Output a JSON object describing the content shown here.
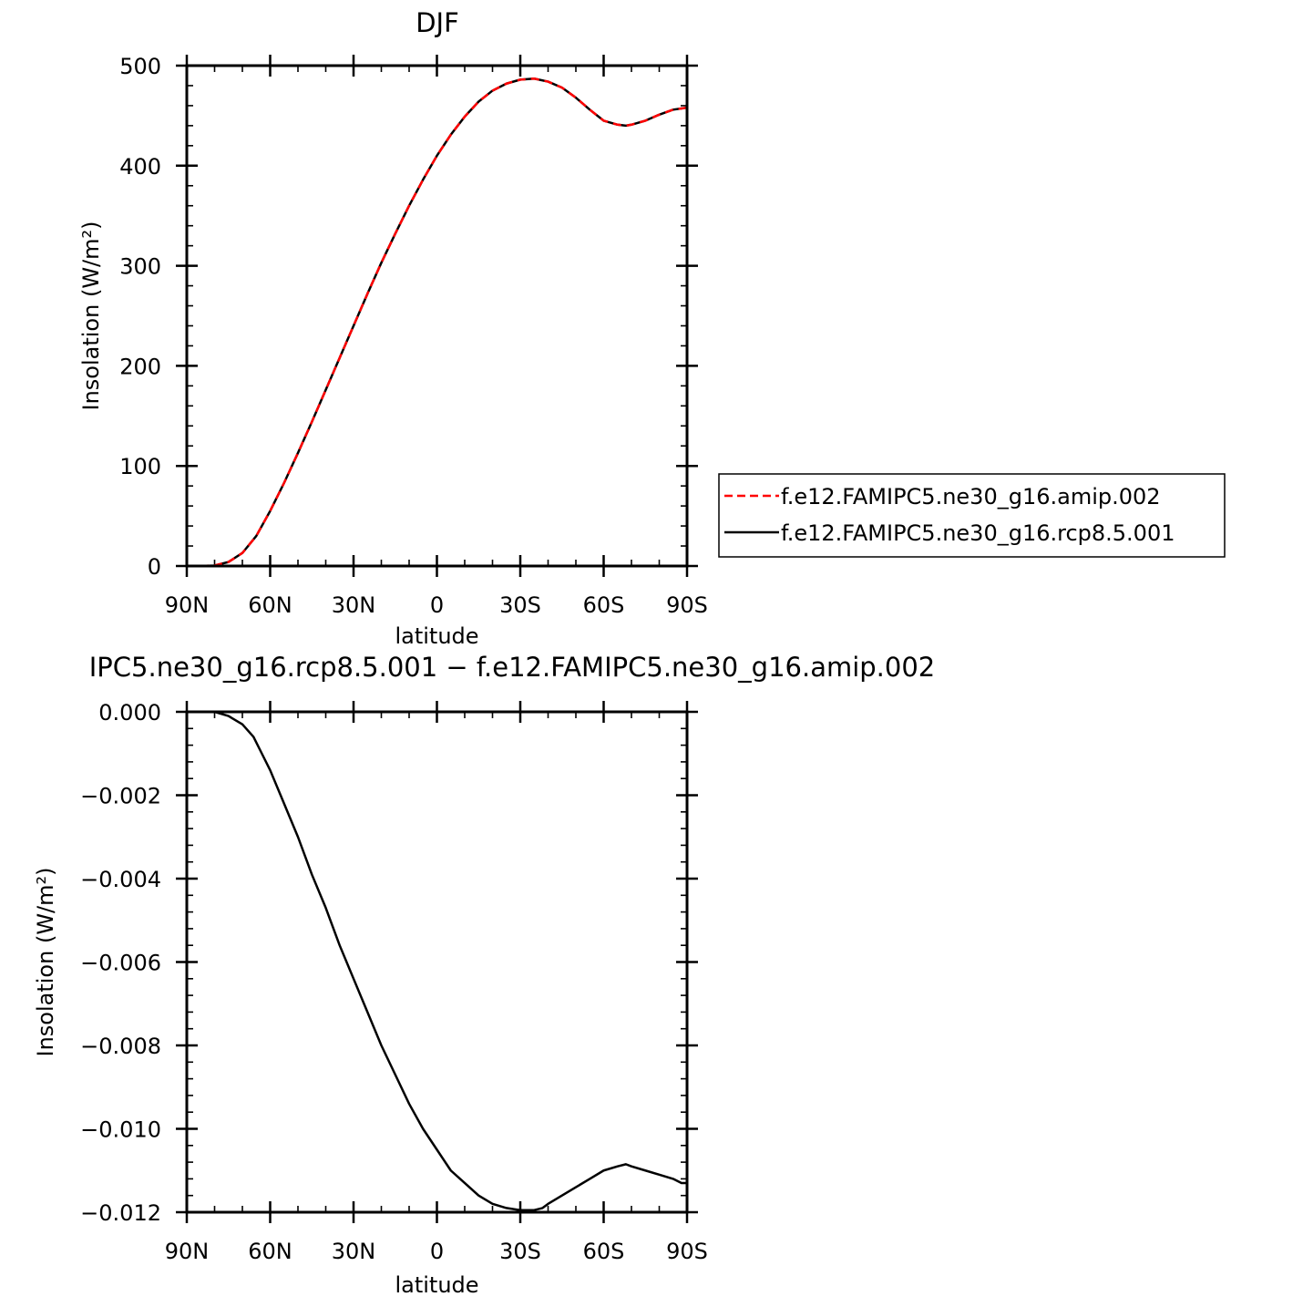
{
  "chart_data": [
    {
      "type": "line",
      "title": "DJF",
      "xlabel": "latitude",
      "ylabel": "Insolation  (W/m²)",
      "xlim": [
        -90,
        90
      ],
      "x_direction": "north-to-south",
      "xticks": [
        -90,
        -60,
        -30,
        0,
        30,
        60,
        90
      ],
      "xtick_labels": [
        "90N",
        "60N",
        "30N",
        "0",
        "30S",
        "60S",
        "90S"
      ],
      "ylim": [
        0,
        500
      ],
      "yticks": [
        0,
        100,
        200,
        300,
        400,
        500
      ],
      "ytick_labels": [
        "0",
        "100",
        "200",
        "300",
        "400",
        "500"
      ],
      "grid": false,
      "legend_position": "right",
      "x": [
        -90,
        -85,
        -80,
        -75,
        -70,
        -65,
        -60,
        -55,
        -50,
        -45,
        -40,
        -35,
        -30,
        -25,
        -20,
        -15,
        -10,
        -5,
        0,
        5,
        10,
        15,
        20,
        25,
        30,
        35,
        40,
        45,
        50,
        55,
        60,
        65,
        68,
        70,
        75,
        80,
        85,
        90
      ],
      "series": [
        {
          "name": "f.e12.FAMIPC5.ne30_g16.amip.002",
          "color": "#ff0000",
          "style": "dashed",
          "values": [
            0,
            0,
            0.5,
            4,
            13,
            30,
            55,
            83,
            113,
            144,
            176,
            208,
            240,
            272,
            303,
            332,
            360,
            386,
            410,
            431,
            449,
            464,
            475,
            482,
            486,
            487,
            484,
            478,
            468,
            456,
            445,
            441,
            440,
            441,
            445,
            451,
            456,
            458
          ]
        },
        {
          "name": "f.e12.FAMIPC5.ne30_g16.rcp8.5.001",
          "color": "#000000",
          "style": "solid",
          "values": [
            0,
            0,
            0.5,
            4,
            13,
            30,
            55,
            83,
            113,
            144,
            176,
            208,
            240,
            272,
            303,
            332,
            360,
            386,
            410,
            431,
            449,
            464,
            475,
            482,
            486,
            487,
            484,
            478,
            468,
            456,
            445,
            441,
            440,
            441,
            445,
            451,
            456,
            458
          ]
        }
      ]
    },
    {
      "type": "line",
      "title": "IPC5.ne30_g16.rcp8.5.001 − f.e12.FAMIPC5.ne30_g16.amip.002",
      "xlabel": "latitude",
      "ylabel": "Insolation  (W/m²)",
      "xlim": [
        -90,
        90
      ],
      "x_direction": "north-to-south",
      "xticks": [
        -90,
        -60,
        -30,
        0,
        30,
        60,
        90
      ],
      "xtick_labels": [
        "90N",
        "60N",
        "30N",
        "0",
        "30S",
        "60S",
        "90S"
      ],
      "ylim": [
        -0.012,
        0
      ],
      "yticks": [
        0,
        -0.002,
        -0.004,
        -0.006,
        -0.008,
        -0.01,
        -0.012
      ],
      "ytick_labels": [
        "0.000",
        "−0.002",
        "−0.004",
        "−0.006",
        "−0.008",
        "−0.010",
        "−0.012"
      ],
      "grid": false,
      "x": [
        -90,
        -85,
        -80,
        -75,
        -70,
        -66,
        -63,
        -60,
        -55,
        -50,
        -45,
        -40,
        -35,
        -30,
        -25,
        -20,
        -15,
        -10,
        -5,
        0,
        5,
        10,
        15,
        20,
        25,
        30,
        33,
        35,
        38,
        40,
        45,
        50,
        55,
        60,
        65,
        68,
        70,
        75,
        80,
        85,
        88,
        90
      ],
      "series": [
        {
          "color": "#000000",
          "style": "solid",
          "values": [
            0,
            0,
            0,
            -0.0001,
            -0.0003,
            -0.0006,
            -0.001,
            -0.0014,
            -0.0022,
            -0.003,
            -0.0039,
            -0.0047,
            -0.0056,
            -0.0064,
            -0.0072,
            -0.008,
            -0.0087,
            -0.0094,
            -0.01,
            -0.0105,
            -0.011,
            -0.0113,
            -0.0116,
            -0.0118,
            -0.0119,
            -0.01195,
            -0.01195,
            -0.01195,
            -0.0119,
            -0.0118,
            -0.0116,
            -0.0114,
            -0.0112,
            -0.011,
            -0.0109,
            -0.01085,
            -0.0109,
            -0.011,
            -0.0111,
            -0.0112,
            -0.0113,
            -0.0113
          ]
        }
      ]
    }
  ]
}
